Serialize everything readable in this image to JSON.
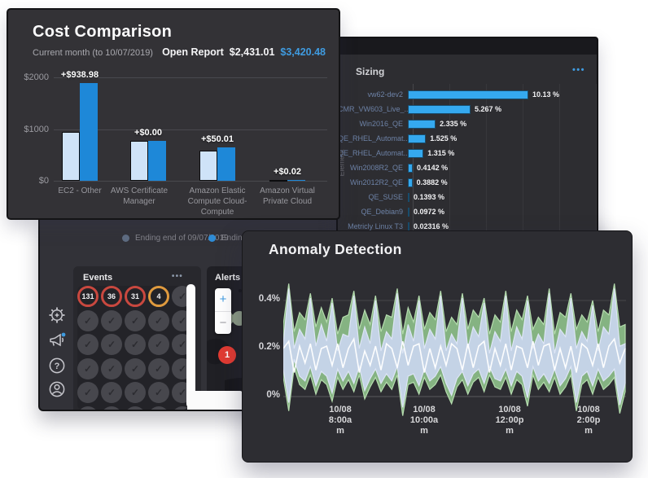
{
  "windows": {
    "cost": {
      "title": "Cost Comparison",
      "subtitle": "Current month (to 10/07/2019)",
      "open_report": "Open Report",
      "amount_primary": "$2,431.01",
      "amount_secondary": "$3,420.48",
      "chart_data": {
        "type": "bar",
        "title": "Cost Comparison",
        "categories": [
          "EC2 - Other",
          "AWS Certificate Manager",
          "Amazon Elastic Compute Cloud-Compute",
          "Amazon Virtual Private Cloud"
        ],
        "series": [
          {
            "name": "previous-period",
            "color": "#cfe3f8",
            "values": [
              950,
              778,
              590,
              15
            ]
          },
          {
            "name": "current-period",
            "color": "#1e88d8",
            "values": [
              1889,
              778,
              640,
              17
            ]
          }
        ],
        "bar_labels": [
          "+$938.98",
          "+$0.00",
          "+$50.01",
          "+$0.02"
        ],
        "yticks": [
          {
            "label": "$2000",
            "value": 2000
          },
          {
            "label": "$1000",
            "value": 1000
          },
          {
            "label": "$0",
            "value": 0
          }
        ],
        "ylim": [
          0,
          2000
        ],
        "grid": true
      }
    },
    "sizing": {
      "title": "Sizing",
      "menu": "•••",
      "chart_data": {
        "type": "bar",
        "orientation": "horizontal",
        "ylabel": "Element",
        "xmax": 10.5,
        "bar_color": "#35a9ef",
        "categories": [
          "vw62-dev2",
          "CMR_VW603_Live_..",
          "Win2016_QE",
          "QE_RHEL_Automat..",
          "QE_RHEL_Automat..",
          "Win2008R2_QE",
          "Win2012R2_QE",
          "QE_SUSE",
          "QE_Debian9",
          "Metricly Linux T3"
        ],
        "values": [
          10.13,
          5.267,
          2.335,
          1.525,
          1.315,
          0.4142,
          0.3882,
          0.1393,
          0.0972,
          0.02316
        ],
        "value_labels": [
          "10.13 %",
          "5.267 %",
          "2.335 %",
          "1.525 %",
          "1.315 %",
          "0.4142 %",
          "0.3882 %",
          "0.1393 %",
          "0.0972 %",
          "0.02316 %"
        ]
      }
    },
    "dashboard": {
      "legend": [
        {
          "label": "Ending end of 09/07/2019",
          "dot_color": "#5f6d82"
        },
        {
          "label": "Ending en",
          "dot_color": "#2f8fd9"
        }
      ],
      "events": {
        "title": "Events",
        "menu": "•••",
        "check_glyph": "✓",
        "badges": [
          {
            "value": "131",
            "ring_color": "#c9483f"
          },
          {
            "value": "36",
            "ring_color": "#c9483f"
          },
          {
            "value": "31",
            "ring_color": "#c9483f"
          },
          {
            "value": "4",
            "ring_color": "#df9a3e"
          }
        ],
        "grid": {
          "columns": 5,
          "check_rows": 5
        }
      },
      "map": {
        "title": "Alerts Map",
        "zoom_in": "+",
        "zoom_out": "−",
        "markers": [
          {
            "value": "0",
            "color": "#8d9c86",
            "x": 15,
            "y": 55,
            "size": 18
          },
          {
            "value": "",
            "color": "#8d9c86",
            "x": 31,
            "y": 55,
            "size": 18
          },
          {
            "value": "1",
            "color": "#e23b32",
            "x": 14,
            "y": 98,
            "size": 22
          }
        ]
      }
    },
    "anomaly": {
      "title": "Anomaly Detection",
      "chart_data": {
        "type": "area",
        "unit": "%",
        "yticks": [
          {
            "label": "0.4%",
            "value": 0.4
          },
          {
            "label": "0.2%",
            "value": 0.2
          },
          {
            "label": "0%",
            "value": 0
          }
        ],
        "x_ticks": [
          [
            "10/08",
            "8:00a",
            "m"
          ],
          [
            "10/08",
            "10:00a",
            "m"
          ],
          [
            "10/08",
            "12:00p",
            "m"
          ],
          [
            "10/08",
            "2:00p",
            "m"
          ]
        ],
        "series": [
          {
            "name": "anomaly-band",
            "role": "band",
            "color": "#8fc28b",
            "edge_color": "#b5dcae",
            "upper": [
              0.3,
              0.47,
              0.27,
              0.35,
              0.32,
              0.43,
              0.29,
              0.37,
              0.31,
              0.41,
              0.26,
              0.33,
              0.34,
              0.44,
              0.28,
              0.36,
              0.3,
              0.42,
              0.27,
              0.34,
              0.33,
              0.45,
              0.26,
              0.37,
              0.31,
              0.42,
              0.28,
              0.35,
              0.32,
              0.44,
              0.27,
              0.33,
              0.3,
              0.43,
              0.28,
              0.36,
              0.33,
              0.41,
              0.26,
              0.34,
              0.31,
              0.44,
              0.27,
              0.36,
              0.32,
              0.42,
              0.28,
              0.33,
              0.3,
              0.45,
              0.26,
              0.35,
              0.33,
              0.43,
              0.28,
              0.34,
              0.31,
              0.4,
              0.27,
              0.36,
              0.34,
              0.47,
              0.29,
              0.3
            ],
            "lower": [
              0.08,
              -0.06,
              0.12,
              0.05,
              0.03,
              0.09,
              0.01,
              0.07,
              0.05,
              -0.02,
              0.08,
              0.03,
              0.07,
              0.02,
              0.09,
              -0.01,
              0.04,
              0.08,
              0.02,
              0.06,
              0.03,
              0.09,
              -0.08,
              0.05,
              0.06,
              0.01,
              0.08,
              0.03,
              0.05,
              0.09,
              0.02,
              -0.03,
              0.04,
              0.07,
              0.01,
              0.06,
              0.08,
              0.02,
              0.09,
              0.04,
              0.03,
              0.08,
              0.01,
              0.07,
              0.05,
              -0.04,
              0.09,
              0.03,
              0.06,
              0.02,
              0.08,
              0.01,
              0.04,
              0.09,
              -0.06,
              0.05,
              0.07,
              0.01,
              0.08,
              0.03,
              0.05,
              0.08,
              -0.07,
              0.02
            ]
          },
          {
            "name": "expected-band",
            "role": "band",
            "color": "#c9d5ee",
            "edge_color": "#dde5f5",
            "upper": [
              0.22,
              0.45,
              0.2,
              0.28,
              0.24,
              0.41,
              0.21,
              0.3,
              0.23,
              0.39,
              0.19,
              0.26,
              0.25,
              0.42,
              0.2,
              0.29,
              0.22,
              0.4,
              0.19,
              0.27,
              0.24,
              0.43,
              0.18,
              0.3,
              0.23,
              0.4,
              0.2,
              0.28,
              0.24,
              0.42,
              0.19,
              0.26,
              0.22,
              0.41,
              0.2,
              0.29,
              0.25,
              0.39,
              0.18,
              0.27,
              0.23,
              0.42,
              0.19,
              0.29,
              0.24,
              0.4,
              0.2,
              0.26,
              0.22,
              0.43,
              0.18,
              0.28,
              0.25,
              0.41,
              0.2,
              0.27,
              0.23,
              0.38,
              0.19,
              0.29,
              0.26,
              0.45,
              0.21,
              0.22
            ],
            "lower": [
              0.115,
              -0.025,
              0.155,
              0.085,
              0.065,
              0.125,
              0.045,
              0.105,
              0.085,
              0.015,
              0.115,
              0.065,
              0.105,
              0.055,
              0.125,
              0.025,
              0.075,
              0.115,
              0.055,
              0.095,
              0.065,
              0.125,
              -0.045,
              0.085,
              0.095,
              0.045,
              0.115,
              0.065,
              0.085,
              0.125,
              0.055,
              0.005,
              0.075,
              0.105,
              0.045,
              0.095,
              0.115,
              0.055,
              0.125,
              0.075,
              0.065,
              0.115,
              0.045,
              0.105,
              0.085,
              -0.005,
              0.125,
              0.065,
              0.095,
              0.055,
              0.115,
              0.045,
              0.075,
              0.125,
              -0.025,
              0.085,
              0.105,
              0.045,
              0.115,
              0.065,
              0.085,
              0.115,
              -0.035,
              0.055
            ]
          },
          {
            "name": "actual",
            "role": "line",
            "color": "#ffffff",
            "values": [
              0.2,
              0.23,
              0.1,
              0.21,
              0.14,
              0.22,
              0.11,
              0.2,
              0.21,
              0.13,
              0.22,
              0.12,
              0.2,
              0.24,
              0.1,
              0.19,
              0.13,
              0.21,
              0.11,
              0.22,
              0.2,
              0.12,
              0.23,
              0.13,
              0.21,
              0.22,
              0.1,
              0.2,
              0.12,
              0.21,
              0.13,
              0.22,
              0.2,
              0.11,
              0.22,
              0.12,
              0.21,
              0.23,
              0.1,
              0.2,
              0.13,
              0.22,
              0.11,
              0.21,
              0.2,
              0.12,
              0.23,
              0.13,
              0.21,
              0.22,
              0.11,
              0.2,
              0.12,
              0.21,
              0.1,
              0.22,
              0.2,
              0.13,
              0.22,
              0.12,
              0.21,
              0.24,
              0.14,
              0.2
            ]
          }
        ]
      }
    }
  }
}
